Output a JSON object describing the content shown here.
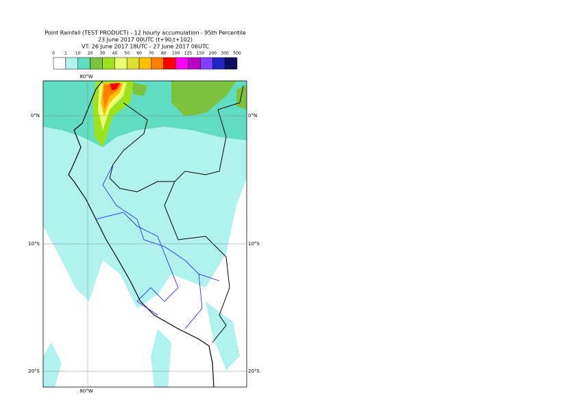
{
  "header": {
    "lines": [
      "Point Rainfall (TEST PRODUCT) - 12 hourly accumulation - 95th Percentile",
      "23 June 2017 00UTC (t+90,t+102)",
      "VT: 26 June 2017 18UTC - 27 June 2017 06UTC"
    ]
  },
  "legend": {
    "labels": [
      "0",
      "1",
      "10",
      "20",
      "30",
      "40",
      "50",
      "60",
      "70",
      "80",
      "100",
      "125",
      "150",
      "200",
      "300",
      "500"
    ],
    "colors": [
      "#ffffff",
      "#b0f2ee",
      "#60dcc0",
      "#7cc23c",
      "#9ee21e",
      "#eaff74",
      "#e0e030",
      "#ffc000",
      "#ff8000",
      "#ff0000",
      "#ff00ff",
      "#c000c0",
      "#8040ff",
      "#2424c0",
      "#101060"
    ]
  },
  "map": {
    "lon_labels": [
      "80°W"
    ],
    "lat_labels": [
      "0°N",
      "10°S",
      "20°S"
    ]
  }
}
